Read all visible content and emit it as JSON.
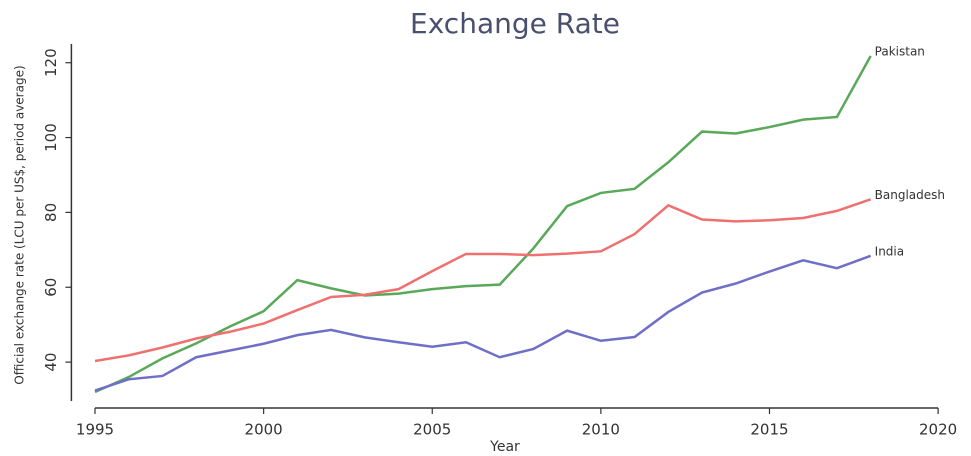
{
  "chart_data": {
    "type": "line",
    "title": "Exchange Rate",
    "xlabel": "Year",
    "ylabel": "Official exchange rate (LCU per US$, period average)",
    "x": [
      1995,
      1996,
      1997,
      1998,
      1999,
      2000,
      2001,
      2002,
      2003,
      2004,
      2005,
      2006,
      2007,
      2008,
      2009,
      2010,
      2011,
      2012,
      2013,
      2014,
      2015,
      2016,
      2017,
      2018
    ],
    "series": [
      {
        "name": "Pakistan",
        "color": "#5aa85a",
        "values": [
          32,
          36,
          41,
          45,
          49.5,
          53.6,
          61.9,
          59.7,
          57.8,
          58.3,
          59.5,
          60.3,
          60.7,
          70.4,
          81.7,
          85.2,
          86.3,
          93.4,
          101.6,
          101.1,
          102.8,
          104.8,
          105.5,
          121.8
        ]
      },
      {
        "name": "Bangladesh",
        "color": "#f07070",
        "values": [
          40.3,
          41.8,
          43.9,
          46.3,
          48.1,
          50.3,
          53.9,
          57.4,
          58.0,
          59.5,
          64.3,
          68.9,
          68.9,
          68.6,
          69.0,
          69.6,
          74.2,
          81.9,
          78.1,
          77.6,
          77.9,
          78.5,
          80.4,
          83.5
        ]
      },
      {
        "name": "India",
        "color": "#6f6fc8",
        "values": [
          32.4,
          35.4,
          36.3,
          41.3,
          43.1,
          44.9,
          47.2,
          48.6,
          46.6,
          45.3,
          44.1,
          45.3,
          41.3,
          43.5,
          48.4,
          45.7,
          46.7,
          53.4,
          58.6,
          61.0,
          64.2,
          67.2,
          65.1,
          68.4
        ]
      }
    ],
    "xlim": [
      1994.3,
      2020.4
    ],
    "xticks": [
      1995,
      2000,
      2005,
      2010,
      2015,
      2020
    ],
    "ylim": [
      28,
      125
    ],
    "yticks": [
      40,
      60,
      80,
      100,
      120
    ]
  }
}
